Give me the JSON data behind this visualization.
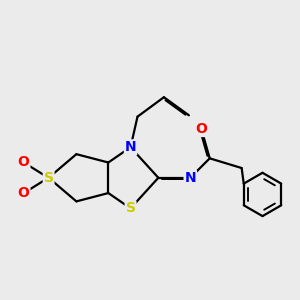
{
  "background_color": "#ebebeb",
  "figsize": [
    3.0,
    3.0
  ],
  "dpi": 100,
  "atom_colors": {
    "S": "#cccc00",
    "N": "#0000ff",
    "O": "#ff0000",
    "C": "#000000"
  },
  "bond_color": "#000000",
  "bond_width": 1.6,
  "font_size_atom": 10
}
